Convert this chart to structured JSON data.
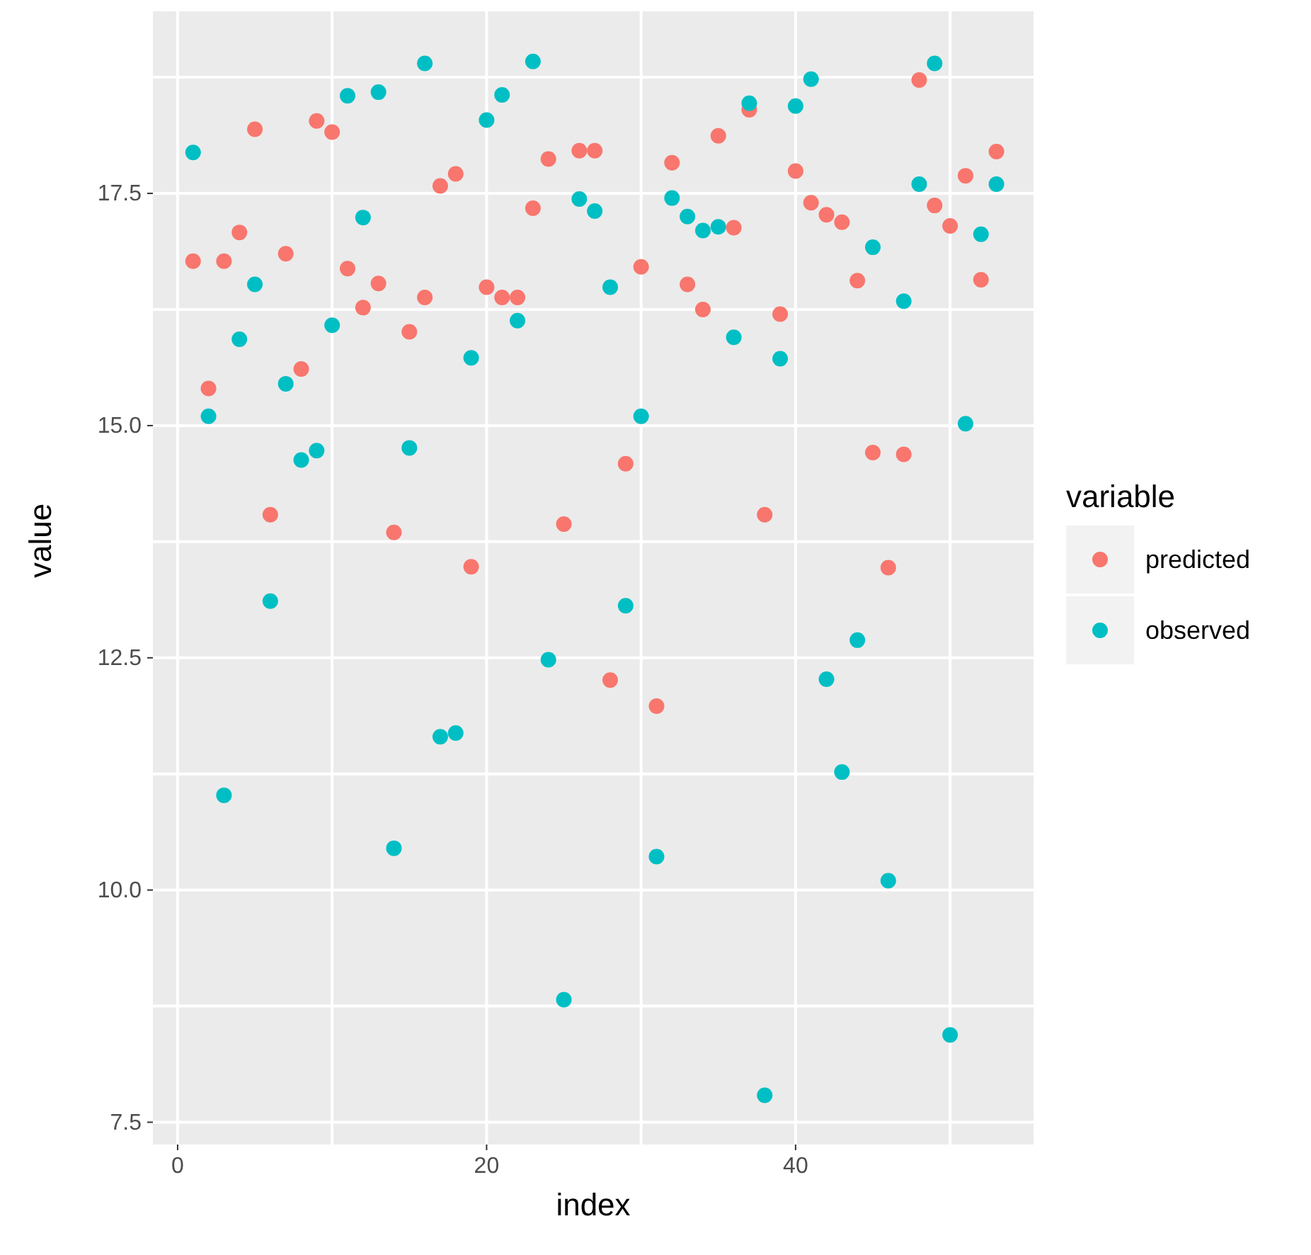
{
  "chart_data": {
    "type": "scatter",
    "xlabel": "index",
    "ylabel": "value",
    "legend_title": "variable",
    "legend": "right",
    "grid": true,
    "marker": "circle",
    "x": [
      1,
      2,
      3,
      4,
      5,
      6,
      7,
      8,
      9,
      10,
      11,
      12,
      13,
      14,
      15,
      16,
      17,
      18,
      19,
      20,
      21,
      22,
      23,
      24,
      25,
      26,
      27,
      28,
      29,
      30,
      31,
      32,
      33,
      34,
      35,
      36,
      37,
      38,
      39,
      40,
      41,
      42,
      43,
      44,
      45,
      46,
      47,
      48,
      49,
      50,
      51,
      52,
      53
    ],
    "xlim": [
      -1.6,
      55.4
    ],
    "xticks": [
      0,
      {
        "value": 10,
        "label": null
      },
      20,
      {
        "value": 30,
        "label": null
      },
      40,
      {
        "value": 50,
        "label": null
      }
    ],
    "ylim": [
      7.26,
      19.46
    ],
    "yticks": [
      7.5,
      {
        "value": 8.75,
        "label": null
      },
      {
        "value": 10,
        "label": "10.0"
      },
      {
        "value": 11.25,
        "label": null
      },
      12.5,
      {
        "value": 13.75,
        "label": null
      },
      {
        "value": 15,
        "label": "15.0"
      },
      {
        "value": 16.25,
        "label": null
      },
      17.5,
      {
        "value": 18.75,
        "label": null
      }
    ],
    "series": [
      {
        "name": "predicted",
        "color": "#f8766d",
        "values": [
          16.77,
          15.4,
          16.77,
          17.08,
          18.19,
          14.04,
          16.85,
          15.61,
          18.28,
          18.16,
          16.69,
          16.27,
          16.53,
          13.85,
          16.01,
          16.38,
          17.58,
          17.71,
          13.48,
          16.49,
          16.38,
          16.38,
          17.34,
          17.87,
          13.94,
          17.96,
          17.96,
          12.26,
          14.59,
          16.71,
          11.98,
          17.83,
          16.52,
          16.25,
          18.12,
          17.13,
          18.4,
          14.04,
          16.2,
          17.74,
          17.4,
          17.27,
          17.19,
          16.56,
          14.71,
          13.47,
          14.69,
          18.72,
          17.37,
          17.15,
          17.69,
          16.57,
          17.95
        ]
      },
      {
        "name": "observed",
        "color": "#00bfc4",
        "values": [
          17.94,
          15.1,
          11.02,
          15.93,
          16.52,
          13.11,
          15.45,
          14.63,
          14.73,
          16.08,
          18.55,
          17.24,
          18.59,
          10.45,
          14.76,
          18.9,
          11.65,
          11.69,
          15.73,
          18.29,
          18.56,
          16.13,
          18.92,
          12.48,
          8.82,
          17.44,
          17.31,
          16.49,
          13.06,
          15.1,
          10.36,
          17.45,
          17.25,
          17.1,
          17.14,
          15.95,
          18.47,
          7.79,
          15.72,
          18.44,
          18.73,
          12.27,
          11.27,
          12.69,
          16.92,
          10.1,
          16.34,
          17.6,
          18.9,
          8.44,
          15.02,
          17.06,
          17.6
        ]
      }
    ]
  }
}
